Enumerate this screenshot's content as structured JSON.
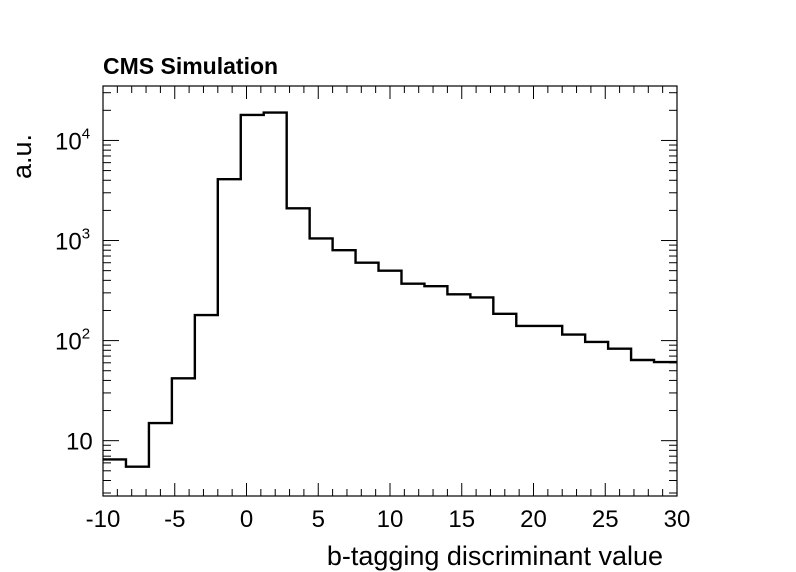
{
  "chart_data": {
    "type": "histogram",
    "title": "CMS Simulation",
    "xlabel": "b-tagging discriminant value",
    "ylabel": "a.u.",
    "xlim": [
      -10,
      30
    ],
    "ylim": [
      2.8,
      35000
    ],
    "yscale": "log",
    "grid": false,
    "legend": "none",
    "line_color": "#000000",
    "x_ticks": [
      "-10",
      "-5",
      "0",
      "5",
      "10",
      "15",
      "20",
      "25",
      "30"
    ],
    "y_ticks": [
      {
        "base": "10",
        "exp": ""
      },
      {
        "base": "10",
        "exp": "2"
      },
      {
        "base": "10",
        "exp": "3"
      },
      {
        "base": "10",
        "exp": "4"
      }
    ],
    "bin_edges": [
      -10,
      -8.4,
      -6.8,
      -5.2,
      -3.6,
      -2,
      -0.4,
      1.2,
      2.8,
      4.4,
      6,
      7.6,
      9.2,
      10.8,
      12.4,
      14,
      15.6,
      17.2,
      18.8,
      20.4,
      22,
      23.6,
      25.2,
      26.8,
      28.4,
      30
    ],
    "values": [
      6.5,
      5.5,
      15,
      42,
      180,
      4100,
      18000,
      19000,
      2100,
      1050,
      800,
      600,
      500,
      370,
      350,
      290,
      270,
      185,
      140,
      140,
      115,
      97,
      83,
      64,
      61
    ]
  }
}
